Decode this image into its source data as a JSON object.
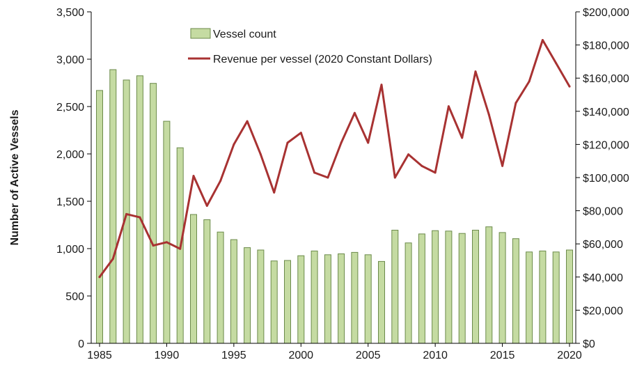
{
  "chart_data": {
    "type": "bar+line",
    "title": "",
    "ylabel": "Number of Active Vessels",
    "y2label": "",
    "ylim": [
      0,
      3500
    ],
    "y2lim": [
      0,
      200000
    ],
    "yticks": [
      "0",
      "500",
      "1,000",
      "1,500",
      "2,000",
      "2,500",
      "3,000",
      "3,500"
    ],
    "y2ticks": [
      "$0",
      "$20,000",
      "$40,000",
      "$60,000",
      "$80,000",
      "$100,000",
      "$120,000",
      "$140,000",
      "$160,000",
      "$180,000",
      "$200,000"
    ],
    "xticks": [
      "1985",
      "1990",
      "1995",
      "2000",
      "2005",
      "2010",
      "2015",
      "2020"
    ],
    "x": [
      1985,
      1986,
      1987,
      1988,
      1989,
      1990,
      1991,
      1992,
      1993,
      1994,
      1995,
      1996,
      1997,
      1998,
      1999,
      2000,
      2001,
      2002,
      2003,
      2004,
      2005,
      2006,
      2007,
      2008,
      2009,
      2010,
      2011,
      2012,
      2013,
      2014,
      2015,
      2016,
      2017,
      2018,
      2019,
      2020
    ],
    "series": [
      {
        "name": "Vessel count",
        "kind": "bar",
        "axis": "left",
        "color": "#c5dba2",
        "values": [
          2670,
          2890,
          2780,
          2825,
          2745,
          2345,
          2065,
          1360,
          1305,
          1175,
          1095,
          1010,
          985,
          870,
          875,
          925,
          975,
          935,
          945,
          960,
          935,
          865,
          1195,
          1060,
          1155,
          1190,
          1185,
          1160,
          1195,
          1230,
          1170,
          1105,
          965,
          975,
          965,
          985
        ]
      },
      {
        "name": "Revenue per vessel (2020 Constant Dollars)",
        "kind": "line",
        "axis": "right",
        "color": "#a83232",
        "values": [
          40000,
          51000,
          78000,
          76000,
          59000,
          61000,
          57000,
          101000,
          83000,
          98000,
          120000,
          134000,
          114000,
          91000,
          121000,
          127000,
          103000,
          100000,
          121000,
          139000,
          121000,
          156000,
          100000,
          114000,
          107000,
          103000,
          143000,
          124000,
          164000,
          138000,
          107000,
          145000,
          158000,
          183000,
          169000,
          155000
        ]
      }
    ],
    "grid": false,
    "legend": "top-center"
  }
}
